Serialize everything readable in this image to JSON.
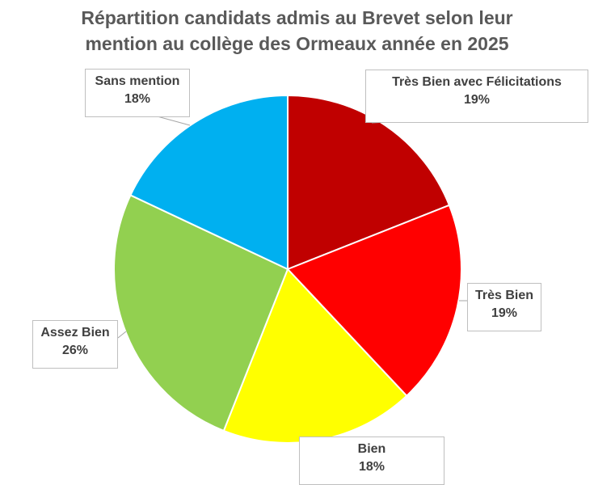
{
  "title_lines": [
    "Répartition candidats admis au Brevet  selon leur",
    "mention au collège des Ormeaux année en 2025"
  ],
  "chart_data": {
    "type": "pie",
    "title": "Répartition candidats admis au Brevet  selon leur mention au collège des Ormeaux année en 2025",
    "start_angle_deg": 0,
    "direction": "clockwise",
    "slices": [
      {
        "label": "Très Bien avec Félicitations",
        "value": 19,
        "display": "19%",
        "color": "#C00000"
      },
      {
        "label": "Très Bien",
        "value": 19,
        "display": "19%",
        "color": "#FF0000"
      },
      {
        "label": "Bien",
        "value": 18,
        "display": "18%",
        "color": "#FFFF00"
      },
      {
        "label": "Assez Bien",
        "value": 26,
        "display": "26%",
        "color": "#92D050"
      },
      {
        "label": "Sans mention",
        "value": 18,
        "display": "18%",
        "color": "#00B0F0"
      }
    ],
    "legend": "none",
    "data_labels": "callouts with category name and percentage"
  }
}
